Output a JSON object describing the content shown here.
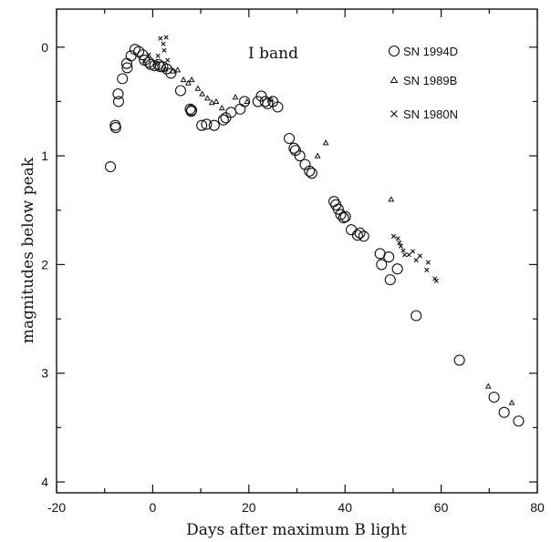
{
  "chart_data": {
    "type": "scatter",
    "title": "",
    "annotation": "I band",
    "xlabel": "Days after maximum B light",
    "ylabel": "magnitudes below peak",
    "xlim": [
      -20,
      80
    ],
    "ylim": [
      4.1,
      -0.35
    ],
    "y_inverted": true,
    "x_ticks": [
      -20,
      0,
      20,
      40,
      60,
      80
    ],
    "y_ticks": [
      0,
      1,
      2,
      3,
      4
    ],
    "grid": false,
    "legend_position": "top-right",
    "series": [
      {
        "name": "SN 1994D",
        "marker": "circle",
        "points": [
          [
            -8.8,
            1.1
          ],
          [
            -7.8,
            0.72
          ],
          [
            -7.7,
            0.74
          ],
          [
            -7.2,
            0.43
          ],
          [
            -7.1,
            0.5
          ],
          [
            -6.3,
            0.29
          ],
          [
            -5.4,
            0.15
          ],
          [
            -5.3,
            0.19
          ],
          [
            -4.5,
            0.08
          ],
          [
            -3.7,
            0.02
          ],
          [
            -2.9,
            0.04
          ],
          [
            -2.1,
            0.07
          ],
          [
            -1.7,
            0.12
          ],
          [
            -0.8,
            0.14
          ],
          [
            -0.4,
            0.16
          ],
          [
            0.4,
            0.17
          ],
          [
            1.2,
            0.16
          ],
          [
            1.6,
            0.18
          ],
          [
            2.1,
            0.18
          ],
          [
            2.9,
            0.2
          ],
          [
            3.8,
            0.24
          ],
          [
            5.8,
            0.4
          ],
          [
            7.8,
            0.57
          ],
          [
            8.0,
            0.59
          ],
          [
            8.1,
            0.58
          ],
          [
            10.2,
            0.72
          ],
          [
            11.2,
            0.71
          ],
          [
            12.8,
            0.72
          ],
          [
            14.7,
            0.67
          ],
          [
            15.2,
            0.65
          ],
          [
            16.3,
            0.6
          ],
          [
            18.2,
            0.57
          ],
          [
            19.1,
            0.5
          ],
          [
            21.9,
            0.5
          ],
          [
            22.6,
            0.45
          ],
          [
            23.4,
            0.5
          ],
          [
            23.9,
            0.52
          ],
          [
            25.0,
            0.5
          ],
          [
            26.0,
            0.55
          ],
          [
            28.4,
            0.84
          ],
          [
            29.4,
            0.93
          ],
          [
            29.7,
            0.95
          ],
          [
            30.6,
            1.0
          ],
          [
            31.7,
            1.08
          ],
          [
            32.6,
            1.14
          ],
          [
            33.1,
            1.16
          ],
          [
            37.7,
            1.42
          ],
          [
            38.1,
            1.45
          ],
          [
            38.6,
            1.49
          ],
          [
            39.1,
            1.54
          ],
          [
            39.7,
            1.57
          ],
          [
            40.1,
            1.56
          ],
          [
            41.3,
            1.68
          ],
          [
            42.6,
            1.73
          ],
          [
            43.1,
            1.71
          ],
          [
            43.9,
            1.74
          ],
          [
            47.3,
            1.9
          ],
          [
            47.6,
            2.0
          ],
          [
            49.1,
            1.93
          ],
          [
            49.4,
            2.14
          ],
          [
            50.9,
            2.04
          ],
          [
            54.8,
            2.47
          ],
          [
            63.8,
            2.88
          ],
          [
            71.0,
            3.22
          ],
          [
            73.1,
            3.36
          ],
          [
            76.1,
            3.44
          ]
        ]
      },
      {
        "name": "SN 1989B",
        "marker": "triangle",
        "points": [
          [
            2.6,
            0.2
          ],
          [
            4.2,
            0.22
          ],
          [
            5.2,
            0.21
          ],
          [
            6.4,
            0.3
          ],
          [
            7.4,
            0.33
          ],
          [
            8.1,
            0.3
          ],
          [
            9.4,
            0.38
          ],
          [
            10.3,
            0.43
          ],
          [
            11.4,
            0.47
          ],
          [
            12.3,
            0.51
          ],
          [
            13.2,
            0.5
          ],
          [
            14.4,
            0.56
          ],
          [
            17.2,
            0.46
          ],
          [
            19.6,
            0.5
          ],
          [
            24.6,
            0.48
          ],
          [
            34.3,
            1.0
          ],
          [
            36.0,
            0.88
          ],
          [
            49.6,
            1.4
          ],
          [
            69.8,
            3.12
          ],
          [
            74.7,
            3.27
          ]
        ]
      },
      {
        "name": "SN 1980N",
        "marker": "cross",
        "points": [
          [
            -1.8,
            0.13
          ],
          [
            -0.8,
            0.07
          ],
          [
            0.6,
            0.15
          ],
          [
            1.1,
            0.08
          ],
          [
            1.6,
            -0.08
          ],
          [
            2.2,
            -0.03
          ],
          [
            2.8,
            -0.09
          ],
          [
            3.1,
            0.12
          ],
          [
            2.4,
            0.03
          ],
          [
            50.1,
            1.74
          ],
          [
            51.0,
            1.76
          ],
          [
            51.3,
            1.8
          ],
          [
            51.6,
            1.83
          ],
          [
            52.1,
            1.87
          ],
          [
            52.4,
            1.91
          ],
          [
            53.3,
            1.91
          ],
          [
            54.1,
            1.88
          ],
          [
            54.8,
            1.96
          ],
          [
            55.6,
            1.92
          ],
          [
            57.0,
            2.05
          ],
          [
            57.3,
            1.98
          ],
          [
            58.7,
            2.13
          ],
          [
            59.0,
            2.15
          ]
        ]
      }
    ]
  }
}
